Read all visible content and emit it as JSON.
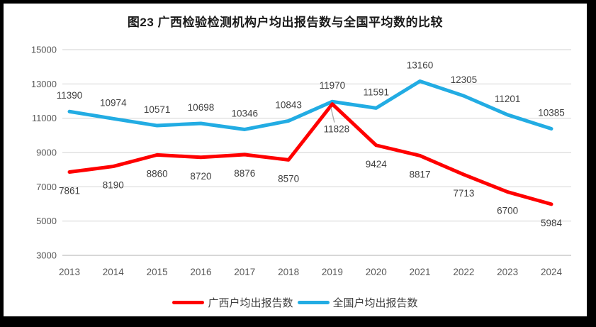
{
  "title": "图23 广西检验检测机构户均出报告数与全国平均数的比较",
  "colors": {
    "guangxi_line": "#FF0000",
    "national_line": "#22ACE3",
    "grid": "#D9D9D9",
    "axis_line": "#BFBFBF",
    "axis_text": "#595959",
    "label_text": "#404040",
    "leader_line": "#A6A6A6",
    "frame_border": "#000000",
    "background": "#FFFFFF"
  },
  "legend": [
    {
      "label": "广西户均出报告数",
      "color": "#FF0000"
    },
    {
      "label": "全国户均出报告数",
      "color": "#22ACE3"
    }
  ],
  "chart_data": {
    "type": "line",
    "title": "图23 广西检验检测机构户均出报告数与全国平均数的比较",
    "categories": [
      "2013",
      "2014",
      "2015",
      "2016",
      "2017",
      "2018",
      "2019",
      "2020",
      "2021",
      "2022",
      "2023",
      "2024"
    ],
    "series": [
      {
        "name": "广西户均出报告数",
        "color": "#FF0000",
        "label_side": "below",
        "values": [
          7861,
          8190,
          8860,
          8720,
          8876,
          8570,
          11828,
          9424,
          8817,
          7713,
          6700,
          5984
        ]
      },
      {
        "name": "全国户均出报告数",
        "color": "#22ACE3",
        "label_side": "above",
        "values": [
          11390,
          10974,
          10571,
          10698,
          10346,
          10843,
          11970,
          11591,
          13160,
          12305,
          11201,
          10385
        ]
      }
    ],
    "xlabel": "",
    "ylabel": "",
    "ylim": [
      3000,
      15000
    ],
    "ytick_step": 2000,
    "ytick_labels": [
      "3000",
      "5000",
      "7000",
      "9000",
      "11000",
      "13000",
      "15000"
    ],
    "grid": true,
    "data_labels": true,
    "legend_position": "bottom",
    "annotations": {
      "leader_label": {
        "series_index": 0,
        "point_index": 6
      }
    }
  }
}
